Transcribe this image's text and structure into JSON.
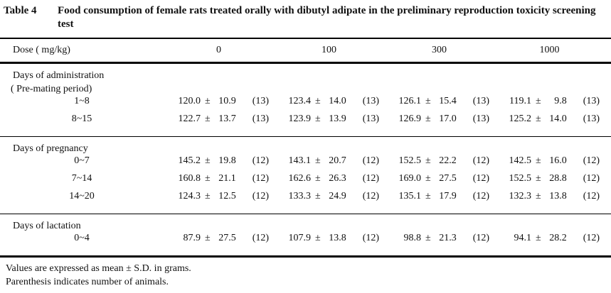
{
  "title": {
    "tag": "Table 4",
    "text": "Food consumption of female rats treated orally with dibutyl adipate in the preliminary reproduction toxicity screening test"
  },
  "signs": {
    "pm": "±"
  },
  "header": {
    "dose_label": "Dose ( mg/kg)",
    "doses": [
      "0",
      "100",
      "300",
      "1000"
    ]
  },
  "sections": [
    {
      "heading": "Days of administration",
      "subheading": "( Pre-mating period)",
      "rows": [
        {
          "label": "1~8",
          "cells": [
            {
              "mean": "120.0",
              "sd": "10.9",
              "n": "(13)"
            },
            {
              "mean": "123.4",
              "sd": "14.0",
              "n": "(13)"
            },
            {
              "mean": "126.1",
              "sd": "15.4",
              "n": "(13)"
            },
            {
              "mean": "119.1",
              "sd": "9.8",
              "n": "(13)"
            }
          ]
        },
        {
          "label": "8~15",
          "cells": [
            {
              "mean": "122.7",
              "sd": "13.7",
              "n": "(13)"
            },
            {
              "mean": "123.9",
              "sd": "13.9",
              "n": "(13)"
            },
            {
              "mean": "126.9",
              "sd": "17.0",
              "n": "(13)"
            },
            {
              "mean": "125.2",
              "sd": "14.0",
              "n": "(13)"
            }
          ]
        }
      ]
    },
    {
      "heading": "Days of pregnancy",
      "rows": [
        {
          "label": "0~7",
          "cells": [
            {
              "mean": "145.2",
              "sd": "19.8",
              "n": "(12)"
            },
            {
              "mean": "143.1",
              "sd": "20.7",
              "n": "(12)"
            },
            {
              "mean": "152.5",
              "sd": "22.2",
              "n": "(12)"
            },
            {
              "mean": "142.5",
              "sd": "16.0",
              "n": "(12)"
            }
          ]
        },
        {
          "label": "7~14",
          "cells": [
            {
              "mean": "160.8",
              "sd": "21.1",
              "n": "(12)"
            },
            {
              "mean": "162.6",
              "sd": "26.3",
              "n": "(12)"
            },
            {
              "mean": "169.0",
              "sd": "27.5",
              "n": "(12)"
            },
            {
              "mean": "152.5",
              "sd": "28.8",
              "n": "(12)"
            }
          ]
        },
        {
          "label": "14~20",
          "cells": [
            {
              "mean": "124.3",
              "sd": "12.5",
              "n": "(12)"
            },
            {
              "mean": "133.3",
              "sd": "24.9",
              "n": "(12)"
            },
            {
              "mean": "135.1",
              "sd": "17.9",
              "n": "(12)"
            },
            {
              "mean": "132.3",
              "sd": "13.8",
              "n": "(12)"
            }
          ]
        }
      ]
    },
    {
      "heading": "Days of lactation",
      "rows": [
        {
          "label": "0~4",
          "cells": [
            {
              "mean": "87.9",
              "sd": "27.5",
              "n": "(12)"
            },
            {
              "mean": "107.9",
              "sd": "13.8",
              "n": "(12)"
            },
            {
              "mean": "98.8",
              "sd": "21.3",
              "n": "(12)"
            },
            {
              "mean": "94.1",
              "sd": "28.2",
              "n": "(12)"
            }
          ]
        }
      ]
    }
  ],
  "footnotes": [
    "Values are expressed as mean ± S.D. in grams.",
    "Parenthesis indicates number of animals."
  ]
}
